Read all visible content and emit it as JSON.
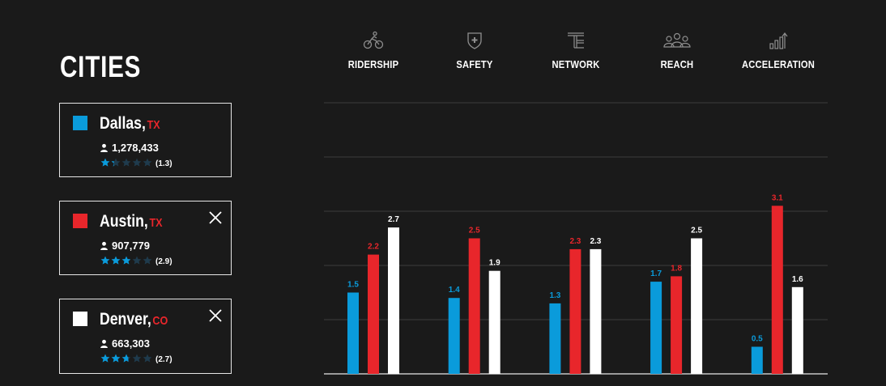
{
  "page": {
    "title": "CITIES"
  },
  "colors": {
    "background": "#1a1a1a",
    "series": [
      "#0a9bdb",
      "#e8262b",
      "#ffffff"
    ],
    "star_empty": "#1f3b4d",
    "grid": "#3c3c3c",
    "axis": "#9a9a9a"
  },
  "cities": [
    {
      "name": "Dallas",
      "state": "TX",
      "population": "1,278,433",
      "rating": 1.3,
      "rating_label": "(1.3)",
      "color": "#0a9bdb",
      "removable": false
    },
    {
      "name": "Austin",
      "state": "TX",
      "population": "907,779",
      "rating": 2.9,
      "rating_label": "(2.9)",
      "color": "#e8262b",
      "removable": true
    },
    {
      "name": "Denver",
      "state": "CO",
      "population": "663,303",
      "rating": 2.7,
      "rating_label": "(2.7)",
      "color": "#ffffff",
      "removable": true
    }
  ],
  "metrics": [
    {
      "label": "RIDERSHIP",
      "icon": "cyclist-icon"
    },
    {
      "label": "SAFETY",
      "icon": "shield-plus-icon"
    },
    {
      "label": "NETWORK",
      "icon": "network-icon"
    },
    {
      "label": "REACH",
      "icon": "people-group-icon"
    },
    {
      "label": "ACCELERATION",
      "icon": "growth-bars-icon"
    }
  ],
  "chart_data": {
    "type": "bar",
    "categories": [
      "RIDERSHIP",
      "SAFETY",
      "NETWORK",
      "REACH",
      "ACCELERATION"
    ],
    "series": [
      {
        "name": "Dallas",
        "values": [
          1.5,
          1.4,
          1.3,
          1.7,
          0.5
        ]
      },
      {
        "name": "Austin",
        "values": [
          2.2,
          2.5,
          2.3,
          1.8,
          3.1
        ]
      },
      {
        "name": "Denver",
        "values": [
          2.7,
          1.9,
          2.3,
          2.5,
          1.6
        ]
      }
    ],
    "ylim": [
      0,
      5
    ],
    "grid": true,
    "data_labels": true
  }
}
